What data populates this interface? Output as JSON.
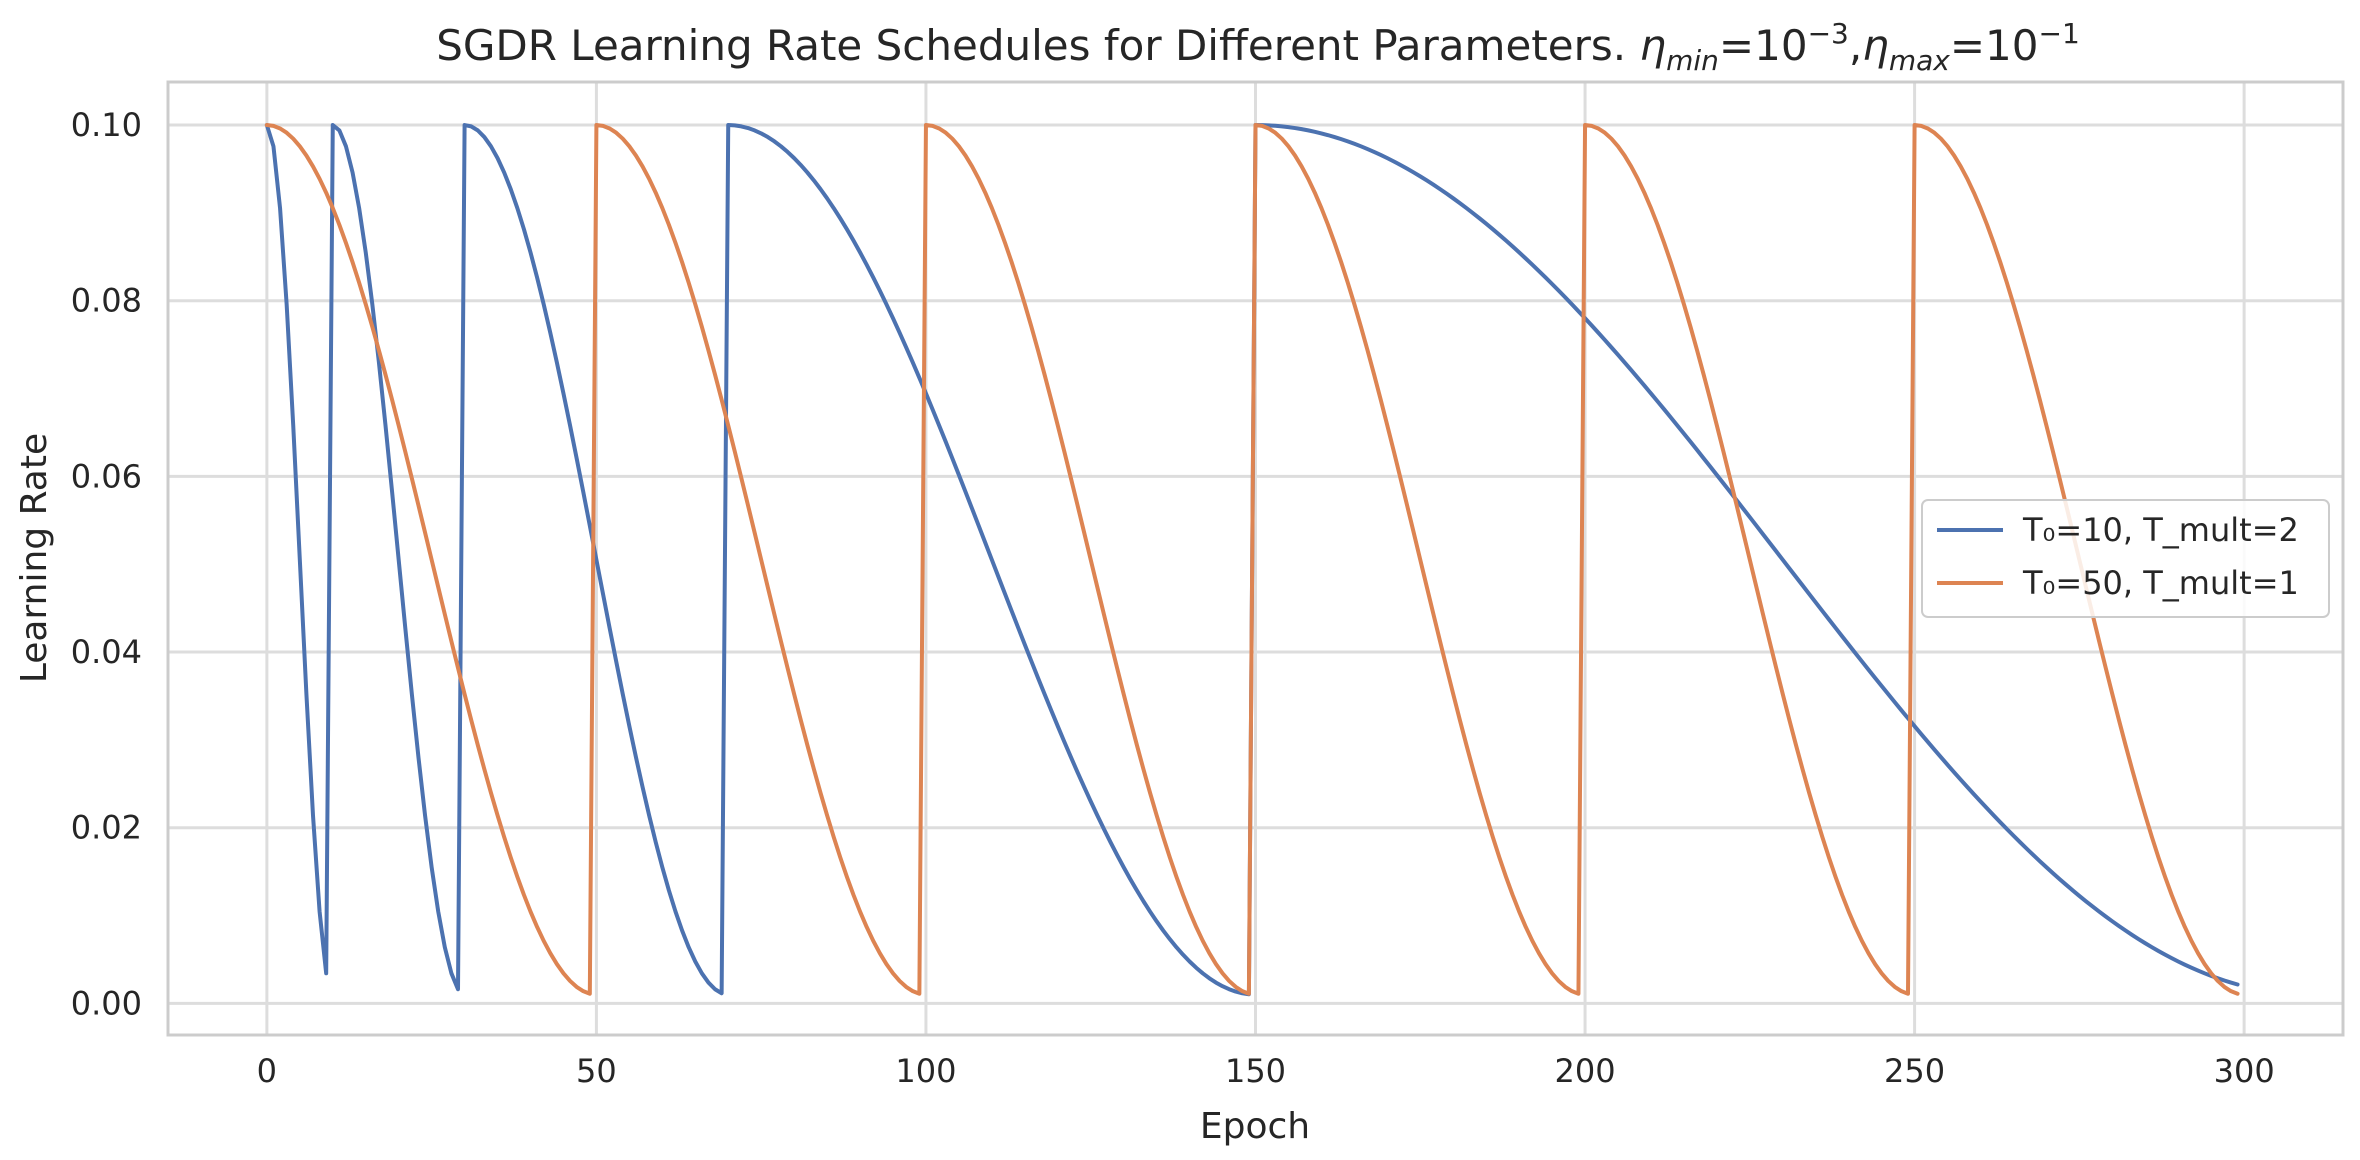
{
  "chart_data": {
    "type": "line",
    "title_prefix": "SGDR Learning Rate Schedules for Different Parameters.",
    "title_eta": "η",
    "title_min_sub": "min",
    "title_max_sub": "max",
    "title_eq": "=",
    "title_ten": "10",
    "title_comma": ",",
    "title_min_exp": "−3",
    "title_max_exp": "−1",
    "xlabel": "Epoch",
    "ylabel": "Learning Rate",
    "xlim": [
      -15,
      315
    ],
    "ylim": [
      -0.0036,
      0.1049
    ],
    "xticks": [
      0,
      50,
      100,
      150,
      200,
      250,
      300
    ],
    "xtick_labels": [
      "0",
      "50",
      "100",
      "150",
      "200",
      "250",
      "300"
    ],
    "yticks": [
      0,
      0.02,
      0.04,
      0.06,
      0.08,
      0.1
    ],
    "ytick_labels": [
      "0.00",
      "0.02",
      "0.04",
      "0.06",
      "0.08",
      "0.10"
    ],
    "grid": true,
    "legend_position": "center-right",
    "eta_min": 0.001,
    "eta_max": 0.1,
    "epochs": 300,
    "series": [
      {
        "name": "T₀=10, T_mult=2",
        "T0": 10,
        "T_mult": 2,
        "color": "#4c72b0"
      },
      {
        "name": "T₀=50, T_mult=1",
        "T0": 50,
        "T_mult": 1,
        "color": "#dd8452"
      }
    ]
  }
}
